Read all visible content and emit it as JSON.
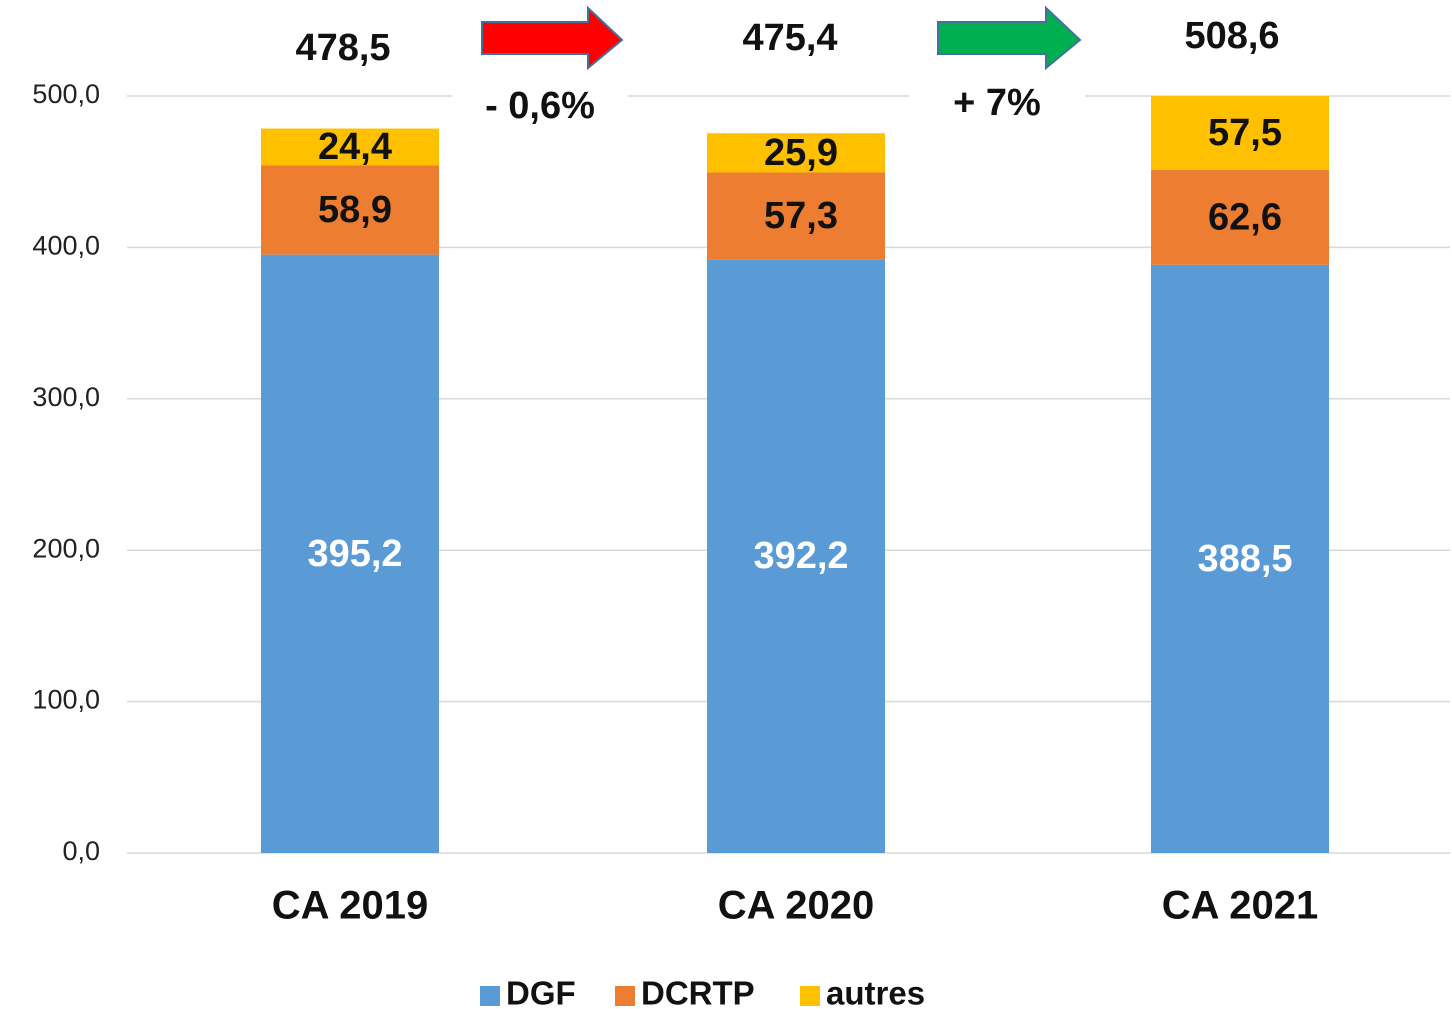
{
  "chart_data": {
    "type": "stacked_bar",
    "categories": [
      "CA 2019",
      "CA 2020",
      "CA 2021"
    ],
    "series": [
      {
        "name": "DGF",
        "color": "#5b9bd5",
        "values": [
          395.2,
          392.2,
          388.5
        ],
        "value_labels": [
          "395,2",
          "392,2",
          "388,5"
        ]
      },
      {
        "name": "DCRTP",
        "color": "#ed7d31",
        "values": [
          58.9,
          57.3,
          62.6
        ],
        "value_labels": [
          "58,9",
          "57,3",
          "62,6"
        ]
      },
      {
        "name": "autres",
        "color": "#ffc000",
        "values": [
          24.4,
          25.9,
          57.5
        ],
        "value_labels": [
          "24,4",
          "25,9",
          "57,5"
        ]
      }
    ],
    "ylim": [
      0,
      500
    ],
    "yticks": [
      {
        "value": 0,
        "label": "0,0"
      },
      {
        "value": 100,
        "label": "100,0"
      },
      {
        "value": 200,
        "label": "200,0"
      },
      {
        "value": 300,
        "label": "300,0"
      },
      {
        "value": 400,
        "label": "400,0"
      },
      {
        "value": 500,
        "label": "500,0"
      }
    ],
    "grid": true,
    "legend": "bottom",
    "annotations": [
      "478,5",
      "- 0,6%",
      "475,4",
      "+ 7%",
      "508,6"
    ]
  }
}
